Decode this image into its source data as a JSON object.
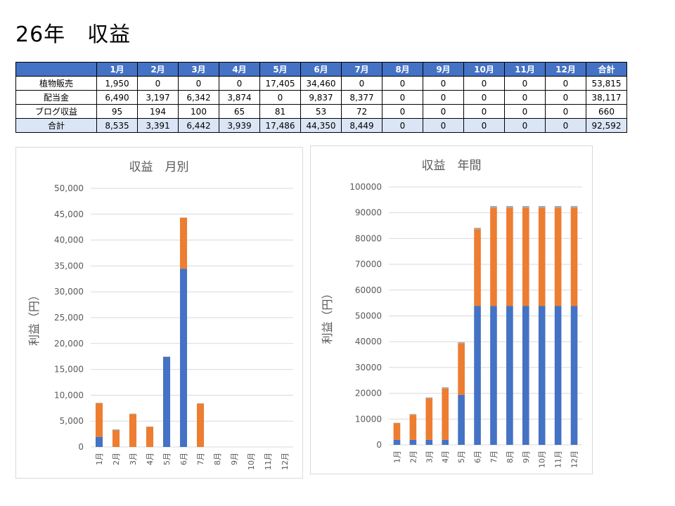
{
  "page": {
    "title": "26年　収益"
  },
  "table": {
    "headers": [
      "",
      "1月",
      "2月",
      "3月",
      "4月",
      "5月",
      "6月",
      "7月",
      "8月",
      "9月",
      "10月",
      "11月",
      "12月",
      "合計"
    ],
    "rows": [
      {
        "label": "植物販売",
        "cells": [
          "1,950",
          "0",
          "0",
          "0",
          "17,405",
          "34,460",
          "0",
          "0",
          "0",
          "0",
          "0",
          "0",
          "53,815"
        ]
      },
      {
        "label": "配当金",
        "cells": [
          "6,490",
          "3,197",
          "6,342",
          "3,874",
          "0",
          "9,837",
          "8,377",
          "0",
          "0",
          "0",
          "0",
          "0",
          "38,117"
        ]
      },
      {
        "label": "ブログ収益",
        "cells": [
          "95",
          "194",
          "100",
          "65",
          "81",
          "53",
          "72",
          "0",
          "0",
          "0",
          "0",
          "0",
          "660"
        ]
      },
      {
        "label": "合計",
        "cells": [
          "8,535",
          "3,391",
          "6,442",
          "3,939",
          "17,486",
          "44,350",
          "8,449",
          "0",
          "0",
          "0",
          "0",
          "0",
          "92,592"
        ]
      }
    ]
  },
  "colors": {
    "blue": "#4472c4",
    "orange": "#ed7d31",
    "gray": "#a5a5a5",
    "grid": "#d9d9d9",
    "axis_text": "#595959"
  },
  "chart_data": [
    {
      "type": "bar",
      "stacked": true,
      "title": "収益　月別",
      "ylabel": "利益（円）",
      "xlabel": "",
      "ylim": [
        0,
        50000
      ],
      "ytick_step": 5000,
      "ytick_labels": [
        "0",
        "5,000",
        "10,000",
        "15,000",
        "20,000",
        "25,000",
        "30,000",
        "35,000",
        "40,000",
        "45,000",
        "50,000"
      ],
      "grid": true,
      "legend": "none",
      "categories": [
        "1月",
        "2月",
        "3月",
        "4月",
        "5月",
        "6月",
        "7月",
        "8月",
        "9月",
        "10月",
        "11月",
        "12月"
      ],
      "series": [
        {
          "color": "#4472c4",
          "values": [
            1950,
            0,
            0,
            0,
            17405,
            34460,
            0,
            0,
            0,
            0,
            0,
            0
          ]
        },
        {
          "color": "#ed7d31",
          "values": [
            6490,
            3197,
            6342,
            3874,
            0,
            9837,
            8377,
            0,
            0,
            0,
            0,
            0
          ]
        },
        {
          "color": "#a5a5a5",
          "values": [
            95,
            194,
            100,
            65,
            81,
            53,
            72,
            0,
            0,
            0,
            0,
            0
          ]
        }
      ]
    },
    {
      "type": "bar",
      "stacked": true,
      "title": "収益　年間",
      "ylabel": "利益（円）",
      "xlabel": "",
      "ylim": [
        0,
        100000
      ],
      "ytick_step": 10000,
      "ytick_labels": [
        "0",
        "10000",
        "20000",
        "30000",
        "40000",
        "50000",
        "60000",
        "70000",
        "80000",
        "90000",
        "100000"
      ],
      "grid": true,
      "legend": "none",
      "categories": [
        "1月",
        "2月",
        "3月",
        "4月",
        "5月",
        "6月",
        "7月",
        "8月",
        "9月",
        "10月",
        "11月",
        "12月"
      ],
      "series": [
        {
          "color": "#4472c4",
          "values": [
            1950,
            1950,
            1950,
            1950,
            19355,
            53815,
            53815,
            53815,
            53815,
            53815,
            53815,
            53815
          ]
        },
        {
          "color": "#ed7d31",
          "values": [
            6490,
            9687,
            16029,
            19903,
            19903,
            29740,
            38117,
            38117,
            38117,
            38117,
            38117,
            38117
          ]
        },
        {
          "color": "#a5a5a5",
          "values": [
            95,
            289,
            389,
            454,
            535,
            588,
            660,
            660,
            660,
            660,
            660,
            660
          ]
        }
      ]
    }
  ]
}
